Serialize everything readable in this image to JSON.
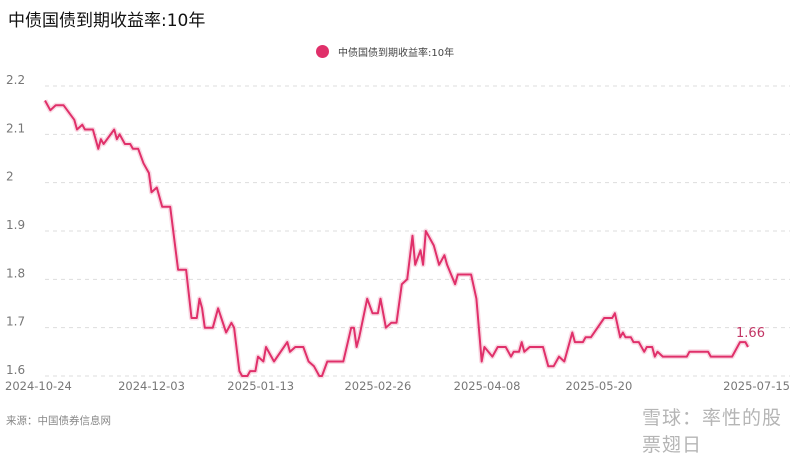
{
  "title": "中债国债到期收益率:10年",
  "source": "来源：中国债券信息网",
  "watermark": "雪球：率性的股票翅日",
  "colors": {
    "line": "#e0306a",
    "annotation": "#c23564",
    "grid": "#dddddd"
  },
  "chart_data": {
    "type": "line",
    "title": "中债国债到期收益率:10年",
    "legend": {
      "position": "top-center",
      "entries": [
        "中债国债到期收益率:10年"
      ]
    },
    "xlabel": "",
    "ylabel": "",
    "ylim": [
      1.6,
      2.2
    ],
    "yticks": [
      "2.2",
      "2.1",
      "2",
      "1.9",
      "1.8",
      "1.7",
      "1.6"
    ],
    "xticks": [
      "2024-10-24",
      "2024-12-03",
      "2025-01-13",
      "2025-02-26",
      "2025-04-08",
      "2025-05-20",
      "2025-07-15"
    ],
    "grid": "horizontal-dashed",
    "last_value_label": "1.66",
    "series": [
      {
        "name": "中债国债到期收益率:10年",
        "points": [
          [
            "2024-10-24",
            2.17
          ],
          [
            "2024-10-26",
            2.15
          ],
          [
            "2024-10-28",
            2.16
          ],
          [
            "2024-10-31",
            2.16
          ],
          [
            "2024-11-04",
            2.13
          ],
          [
            "2024-11-05",
            2.11
          ],
          [
            "2024-11-07",
            2.12
          ],
          [
            "2024-11-08",
            2.11
          ],
          [
            "2024-11-11",
            2.11
          ],
          [
            "2024-11-13",
            2.07
          ],
          [
            "2024-11-14",
            2.09
          ],
          [
            "2024-11-15",
            2.08
          ],
          [
            "2024-11-19",
            2.11
          ],
          [
            "2024-11-20",
            2.09
          ],
          [
            "2024-11-21",
            2.1
          ],
          [
            "2024-11-23",
            2.08
          ],
          [
            "2024-11-25",
            2.08
          ],
          [
            "2024-11-26",
            2.07
          ],
          [
            "2024-11-28",
            2.07
          ],
          [
            "2024-11-30",
            2.04
          ],
          [
            "2024-12-02",
            2.02
          ],
          [
            "2024-12-03",
            1.98
          ],
          [
            "2024-12-05",
            1.99
          ],
          [
            "2024-12-07",
            1.95
          ],
          [
            "2024-12-10",
            1.95
          ],
          [
            "2024-12-13",
            1.82
          ],
          [
            "2024-12-16",
            1.82
          ],
          [
            "2024-12-18",
            1.72
          ],
          [
            "2024-12-20",
            1.72
          ],
          [
            "2024-12-21",
            1.76
          ],
          [
            "2024-12-22",
            1.74
          ],
          [
            "2024-12-23",
            1.7
          ],
          [
            "2024-12-26",
            1.7
          ],
          [
            "2024-12-28",
            1.74
          ],
          [
            "2024-12-31",
            1.69
          ],
          [
            "2025-01-02",
            1.71
          ],
          [
            "2025-01-03",
            1.7
          ],
          [
            "2025-01-05",
            1.61
          ],
          [
            "2025-01-06",
            1.6
          ],
          [
            "2025-01-08",
            1.6
          ],
          [
            "2025-01-09",
            1.61
          ],
          [
            "2025-01-11",
            1.61
          ],
          [
            "2025-01-12",
            1.64
          ],
          [
            "2025-01-14",
            1.63
          ],
          [
            "2025-01-15",
            1.66
          ],
          [
            "2025-01-18",
            1.63
          ],
          [
            "2025-01-23",
            1.67
          ],
          [
            "2025-01-24",
            1.65
          ],
          [
            "2025-01-26",
            1.66
          ],
          [
            "2025-01-29",
            1.66
          ],
          [
            "2025-01-31",
            1.63
          ],
          [
            "2025-02-02",
            1.62
          ],
          [
            "2025-02-04",
            1.6
          ],
          [
            "2025-02-05",
            1.6
          ],
          [
            "2025-02-07",
            1.63
          ],
          [
            "2025-02-13",
            1.63
          ],
          [
            "2025-02-16",
            1.7
          ],
          [
            "2025-02-17",
            1.7
          ],
          [
            "2025-02-18",
            1.66
          ],
          [
            "2025-02-19",
            1.68
          ],
          [
            "2025-02-22",
            1.76
          ],
          [
            "2025-02-24",
            1.73
          ],
          [
            "2025-02-26",
            1.73
          ],
          [
            "2025-02-27",
            1.76
          ],
          [
            "2025-03-01",
            1.7
          ],
          [
            "2025-03-03",
            1.71
          ],
          [
            "2025-03-05",
            1.71
          ],
          [
            "2025-03-07",
            1.79
          ],
          [
            "2025-03-09",
            1.8
          ],
          [
            "2025-03-11",
            1.89
          ],
          [
            "2025-03-12",
            1.83
          ],
          [
            "2025-03-14",
            1.86
          ],
          [
            "2025-03-15",
            1.83
          ],
          [
            "2025-03-16",
            1.9
          ],
          [
            "2025-03-19",
            1.87
          ],
          [
            "2025-03-21",
            1.83
          ],
          [
            "2025-03-23",
            1.85
          ],
          [
            "2025-03-24",
            1.83
          ],
          [
            "2025-03-27",
            1.79
          ],
          [
            "2025-03-28",
            1.81
          ],
          [
            "2025-04-02",
            1.81
          ],
          [
            "2025-04-04",
            1.76
          ],
          [
            "2025-04-06",
            1.63
          ],
          [
            "2025-04-07",
            1.66
          ],
          [
            "2025-04-10",
            1.64
          ],
          [
            "2025-04-12",
            1.66
          ],
          [
            "2025-04-15",
            1.66
          ],
          [
            "2025-04-17",
            1.64
          ],
          [
            "2025-04-18",
            1.65
          ],
          [
            "2025-04-20",
            1.65
          ],
          [
            "2025-04-21",
            1.67
          ],
          [
            "2025-04-22",
            1.65
          ],
          [
            "2025-04-24",
            1.66
          ],
          [
            "2025-04-29",
            1.66
          ],
          [
            "2025-05-01",
            1.62
          ],
          [
            "2025-05-03",
            1.62
          ],
          [
            "2025-05-05",
            1.64
          ],
          [
            "2025-05-07",
            1.63
          ],
          [
            "2025-05-10",
            1.69
          ],
          [
            "2025-05-11",
            1.67
          ],
          [
            "2025-05-14",
            1.67
          ],
          [
            "2025-05-15",
            1.68
          ],
          [
            "2025-05-17",
            1.68
          ],
          [
            "2025-05-22",
            1.72
          ],
          [
            "2025-05-25",
            1.72
          ],
          [
            "2025-05-26",
            1.73
          ],
          [
            "2025-05-28",
            1.68
          ],
          [
            "2025-05-29",
            1.69
          ],
          [
            "2025-05-30",
            1.68
          ],
          [
            "2025-06-01",
            1.68
          ],
          [
            "2025-06-02",
            1.67
          ],
          [
            "2025-06-04",
            1.67
          ],
          [
            "2025-06-06",
            1.65
          ],
          [
            "2025-06-07",
            1.66
          ],
          [
            "2025-06-09",
            1.66
          ],
          [
            "2025-06-10",
            1.64
          ],
          [
            "2025-06-11",
            1.65
          ],
          [
            "2025-06-13",
            1.64
          ],
          [
            "2025-06-22",
            1.64
          ],
          [
            "2025-06-23",
            1.65
          ],
          [
            "2025-06-30",
            1.65
          ],
          [
            "2025-07-01",
            1.64
          ],
          [
            "2025-07-09",
            1.64
          ],
          [
            "2025-07-12",
            1.67
          ],
          [
            "2025-07-14",
            1.67
          ],
          [
            "2025-07-15",
            1.66
          ]
        ]
      }
    ]
  }
}
